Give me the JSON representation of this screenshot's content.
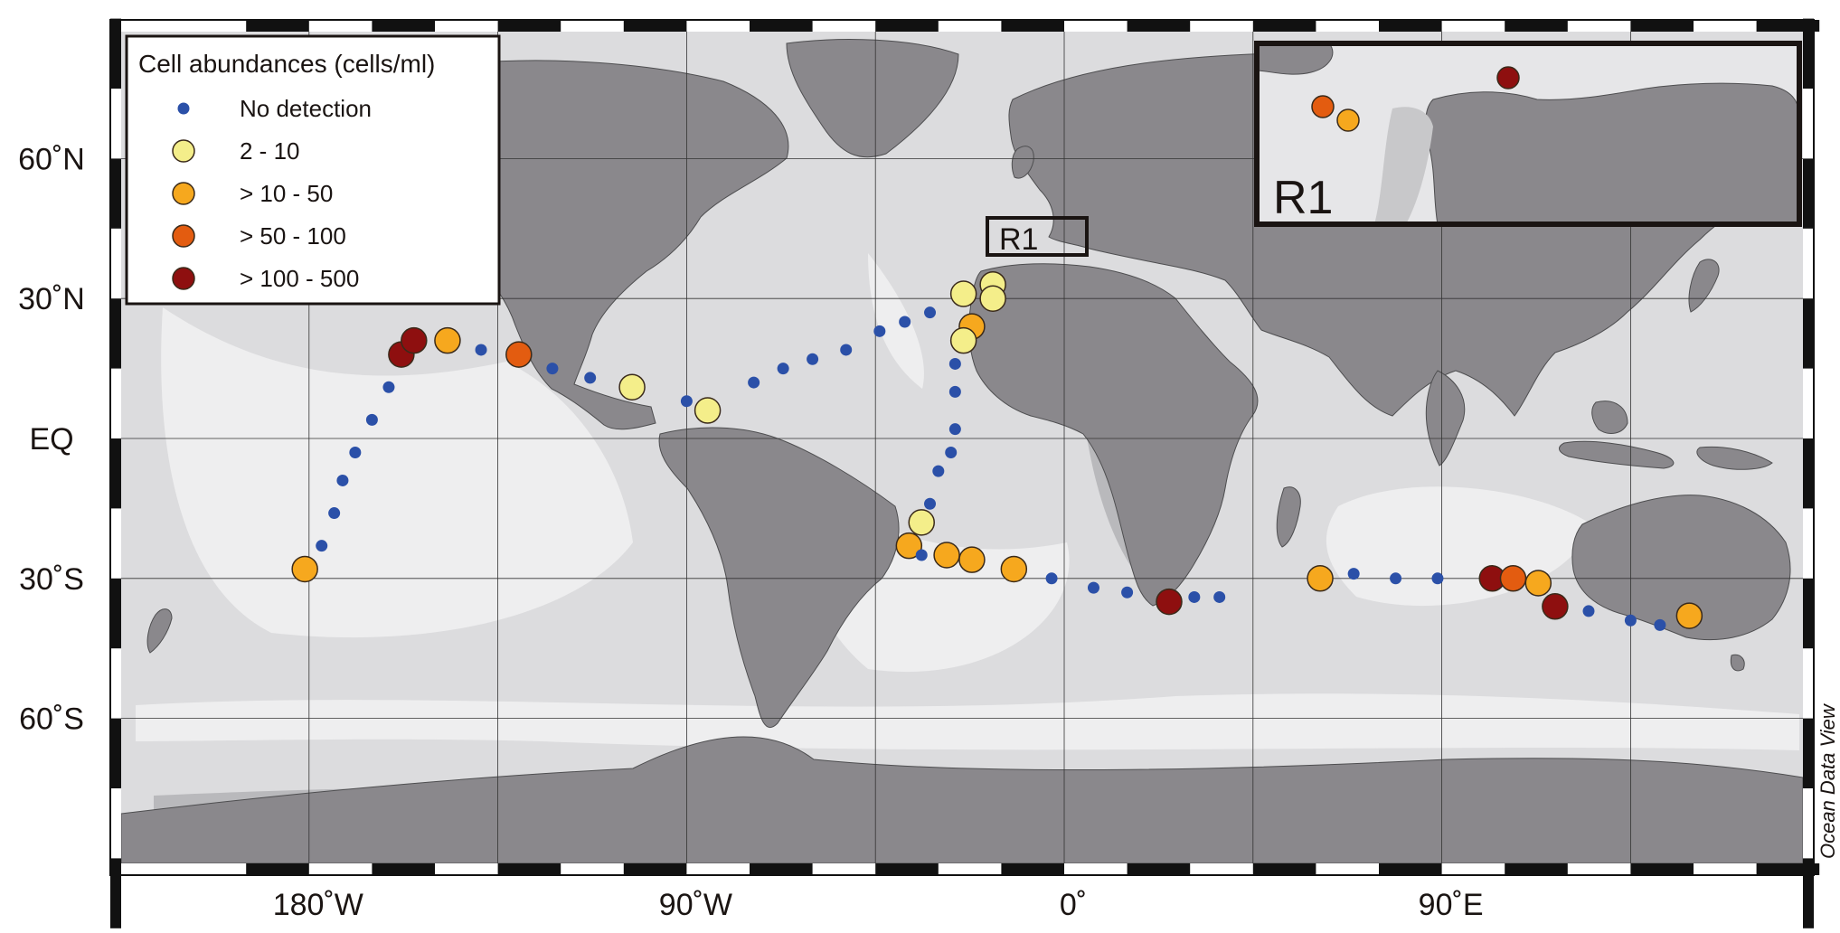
{
  "legend": {
    "title": "Cell abundances (cells/ml)",
    "items": [
      {
        "label": "No detection",
        "color": "#2b50a8"
      },
      {
        "label": "2 - 10",
        "color": "#f4ee8a"
      },
      {
        "label": "> 10 - 50",
        "color": "#f6a81e"
      },
      {
        "label": "> 50 - 100",
        "color": "#e35c10"
      },
      {
        "label": "> 100 - 500",
        "color": "#8e0f0f"
      }
    ]
  },
  "lat_labels": [
    "60˚N",
    "30˚N",
    "EQ",
    "30˚S",
    "60˚S"
  ],
  "lon_labels": [
    "180˚W",
    "90˚W",
    "0˚",
    "90˚E"
  ],
  "region_label": "R1",
  "inset_label": "R1",
  "credit": "Ocean Data View",
  "colors": {
    "land": "#8a888c",
    "ocean": "#dcdcde",
    "deep_ocean": "#ececee",
    "no_detection": "#2b50a8"
  },
  "stations": [
    {
      "lon": -181,
      "lat": -28,
      "cat": 2
    },
    {
      "lon": -177,
      "lat": -23,
      "cat": 0
    },
    {
      "lon": -174,
      "lat": -16,
      "cat": 0
    },
    {
      "lon": -172,
      "lat": -9,
      "cat": 0
    },
    {
      "lon": -169,
      "lat": -3,
      "cat": 0
    },
    {
      "lon": -165,
      "lat": 4,
      "cat": 0
    },
    {
      "lon": -161,
      "lat": 11,
      "cat": 0
    },
    {
      "lon": -158,
      "lat": 18,
      "cat": 4
    },
    {
      "lon": -155,
      "lat": 21,
      "cat": 4
    },
    {
      "lon": -147,
      "lat": 21,
      "cat": 2
    },
    {
      "lon": -139,
      "lat": 19,
      "cat": 0
    },
    {
      "lon": -130,
      "lat": 18,
      "cat": 3
    },
    {
      "lon": -122,
      "lat": 15,
      "cat": 0
    },
    {
      "lon": -113,
      "lat": 13,
      "cat": 0
    },
    {
      "lon": -103,
      "lat": 11,
      "cat": 1
    },
    {
      "lon": -90,
      "lat": 8,
      "cat": 0
    },
    {
      "lon": -85,
      "lat": 6,
      "cat": 1
    },
    {
      "lon": -74,
      "lat": 12,
      "cat": 0
    },
    {
      "lon": -67,
      "lat": 15,
      "cat": 0
    },
    {
      "lon": -60,
      "lat": 17,
      "cat": 0
    },
    {
      "lon": -52,
      "lat": 19,
      "cat": 0
    },
    {
      "lon": -44,
      "lat": 23,
      "cat": 0
    },
    {
      "lon": -38,
      "lat": 25,
      "cat": 0
    },
    {
      "lon": -32,
      "lat": 27,
      "cat": 0
    },
    {
      "lon": -24,
      "lat": 31,
      "cat": 1
    },
    {
      "lon": -17,
      "lat": 33,
      "cat": 1
    },
    {
      "lon": -17,
      "lat": 30,
      "cat": 1
    },
    {
      "lon": -22,
      "lat": 24,
      "cat": 2
    },
    {
      "lon": -24,
      "lat": 21,
      "cat": 1
    },
    {
      "lon": -26,
      "lat": 16,
      "cat": 0
    },
    {
      "lon": -26,
      "lat": 10,
      "cat": 0
    },
    {
      "lon": -26,
      "lat": 2,
      "cat": 0
    },
    {
      "lon": -27,
      "lat": -3,
      "cat": 0
    },
    {
      "lon": -30,
      "lat": -7,
      "cat": 0
    },
    {
      "lon": -32,
      "lat": -14,
      "cat": 0
    },
    {
      "lon": -34,
      "lat": -18,
      "cat": 1
    },
    {
      "lon": -37,
      "lat": -23,
      "cat": 2
    },
    {
      "lon": -34,
      "lat": -25,
      "cat": 0
    },
    {
      "lon": -28,
      "lat": -25,
      "cat": 2
    },
    {
      "lon": -22,
      "lat": -26,
      "cat": 2
    },
    {
      "lon": -12,
      "lat": -28,
      "cat": 2
    },
    {
      "lon": -3,
      "lat": -30,
      "cat": 0
    },
    {
      "lon": 7,
      "lat": -32,
      "cat": 0
    },
    {
      "lon": 15,
      "lat": -33,
      "cat": 0
    },
    {
      "lon": 25,
      "lat": -35,
      "cat": 4
    },
    {
      "lon": 31,
      "lat": -34,
      "cat": 0
    },
    {
      "lon": 37,
      "lat": -34,
      "cat": 0
    },
    {
      "lon": 61,
      "lat": -30,
      "cat": 2
    },
    {
      "lon": 69,
      "lat": -29,
      "cat": 0
    },
    {
      "lon": 79,
      "lat": -30,
      "cat": 0
    },
    {
      "lon": 89,
      "lat": -30,
      "cat": 0
    },
    {
      "lon": 102,
      "lat": -30,
      "cat": 4
    },
    {
      "lon": 107,
      "lat": -30,
      "cat": 3
    },
    {
      "lon": 113,
      "lat": -31,
      "cat": 2
    },
    {
      "lon": 117,
      "lat": -36,
      "cat": 4
    },
    {
      "lon": 125,
      "lat": -37,
      "cat": 0
    },
    {
      "lon": 135,
      "lat": -39,
      "cat": 0
    },
    {
      "lon": 142,
      "lat": -40,
      "cat": 0
    },
    {
      "lon": 149,
      "lat": -38,
      "cat": 2
    }
  ],
  "inset_stations": [
    {
      "cat": 3
    },
    {
      "cat": 2
    },
    {
      "cat": 4
    }
  ]
}
